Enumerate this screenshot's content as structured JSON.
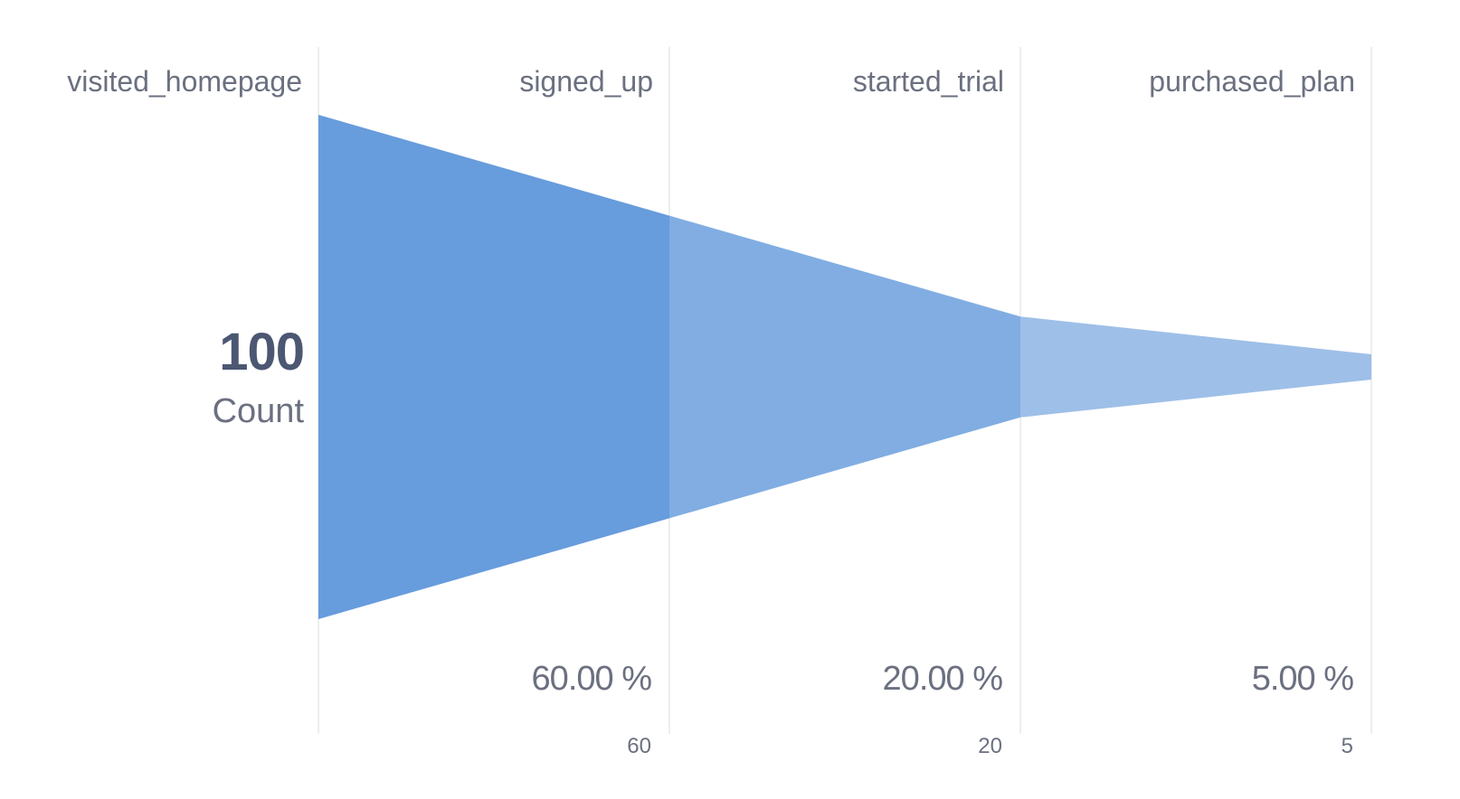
{
  "chart_data": {
    "type": "funnel",
    "metric_label": "Count",
    "steps": [
      {
        "name": "visited_homepage",
        "value": 100,
        "value_label": "100",
        "percent_label": ""
      },
      {
        "name": "signed_up",
        "value": 60,
        "value_label": "60",
        "percent_label": "60.00 %"
      },
      {
        "name": "started_trial",
        "value": 20,
        "value_label": "20",
        "percent_label": "20.00 %"
      },
      {
        "name": "purchased_plan",
        "value": 5,
        "value_label": "5",
        "percent_label": "5.00 %"
      }
    ],
    "colors": {
      "segments": [
        "#679cdd",
        "#81ade2",
        "#9ebfe8"
      ],
      "gridlines": "#e6e8eb",
      "text": "#6b7080",
      "value_text": "#4c5773"
    }
  }
}
